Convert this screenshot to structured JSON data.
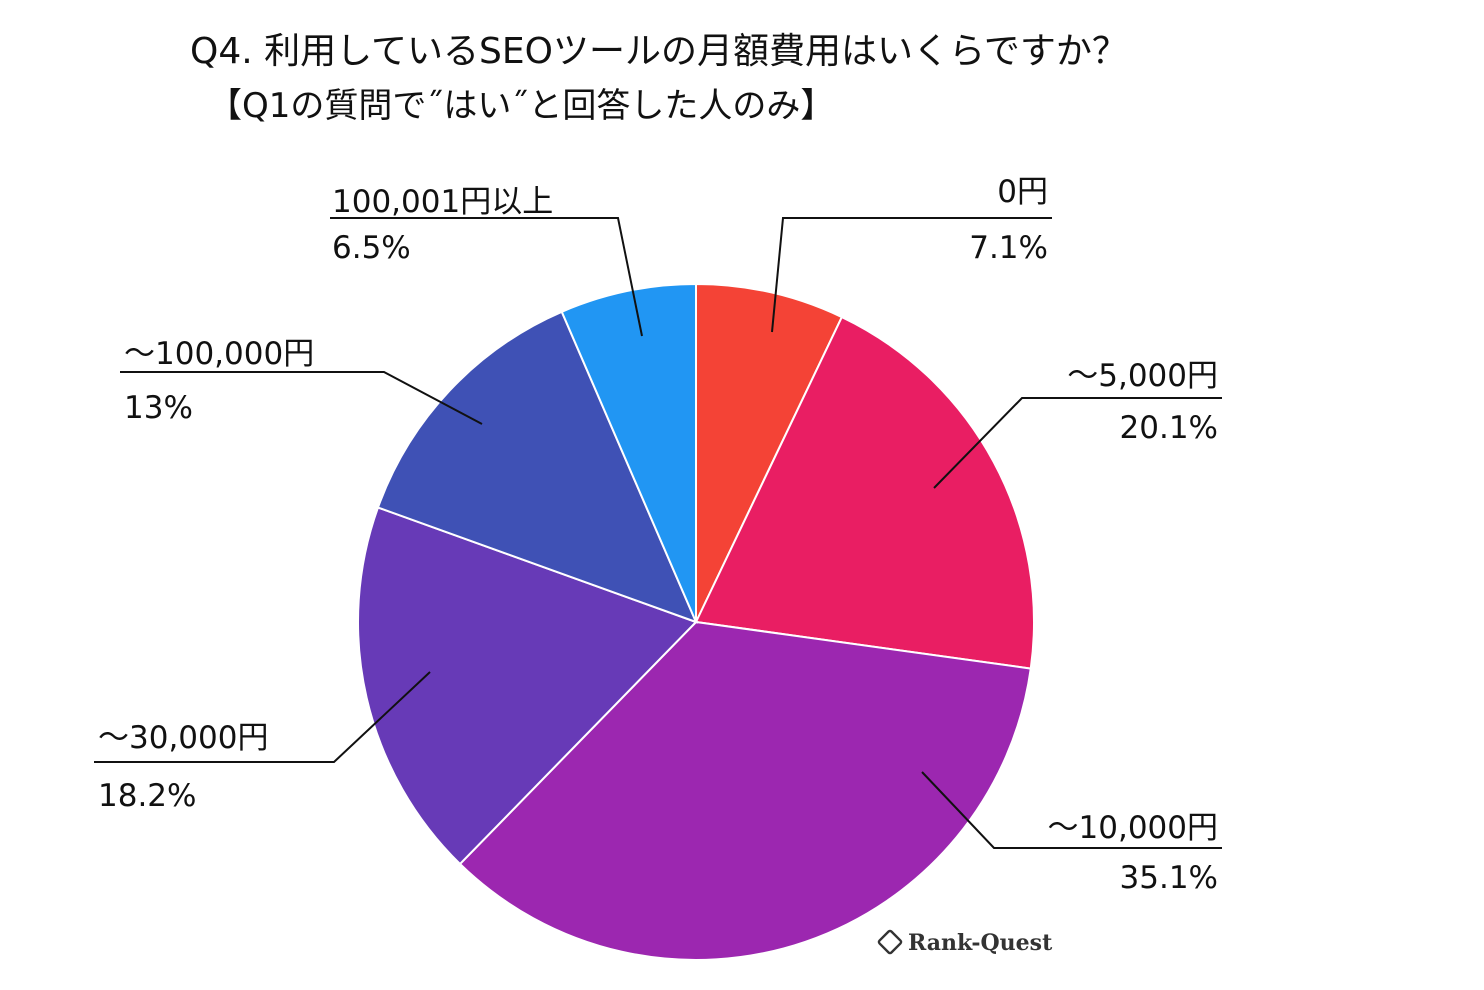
{
  "chart_data": {
    "type": "pie",
    "title": "Q4. 利用しているSEOツールの月額費用はいくらですか？",
    "subtitle": "【Q1の質問で˝はい˝と回答した人のみ】",
    "slices": [
      {
        "label": "0円",
        "value": 7.1,
        "value_label": "7.1%",
        "color": "#f44336"
      },
      {
        "label": "～5,000円",
        "value": 20.1,
        "value_label": "20.1%",
        "color": "#e91e63"
      },
      {
        "label": "～10,000円",
        "value": 35.1,
        "value_label": "35.1%",
        "color": "#9c27b0"
      },
      {
        "label": "～30,000円",
        "value": 18.2,
        "value_label": "18.2%",
        "color": "#673ab7"
      },
      {
        "label": "～100,000円",
        "value": 13,
        "value_label": "13%",
        "color": "#3f51b5"
      },
      {
        "label": "100,001円以上",
        "value": 6.5,
        "value_label": "6.5%",
        "color": "#2196f3"
      }
    ],
    "start_angle": "12 o'clock",
    "direction": "clockwise",
    "legend": "none"
  },
  "watermark": "Rank-Quest"
}
